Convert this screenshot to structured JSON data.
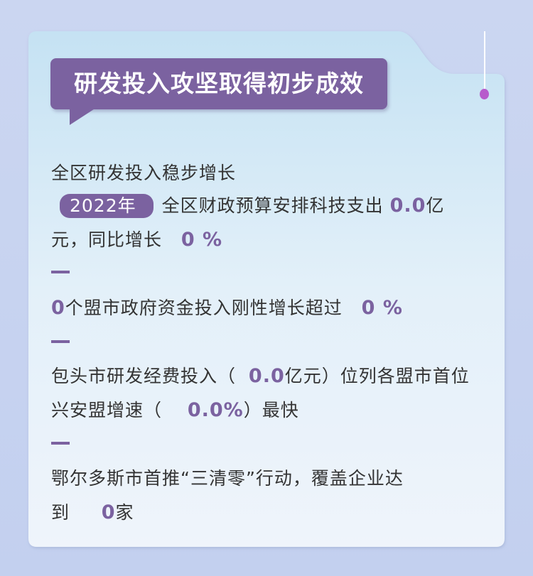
{
  "title": "研发投入攻坚取得初步成效",
  "colors": {
    "accent": "#7b62a0",
    "pin": "#b75ccc"
  },
  "sections": [
    {
      "heading": "全区研发投入稳步增长",
      "year_badge": "2022年",
      "text1": "全区财政预算安排科技支出",
      "value1": "0.0",
      "unit1": "亿",
      "text2": "元，同比增长",
      "value2": "0 %"
    },
    {
      "value1": "0",
      "text1": "个盟市政府资金投入刚性增长超过",
      "value2": "0 %"
    },
    {
      "text1": "包头市研发经费投入（",
      "value1": "0.0",
      "text2": "亿元）位列各盟市首位",
      "text3": "兴安盟增速（",
      "value2": "0.0%",
      "text4": "）最快"
    },
    {
      "text1": "鄂尔多斯市首推“三清零”行动，覆盖企业达",
      "text2": "到",
      "value1": "0",
      "text3": "家"
    }
  ]
}
